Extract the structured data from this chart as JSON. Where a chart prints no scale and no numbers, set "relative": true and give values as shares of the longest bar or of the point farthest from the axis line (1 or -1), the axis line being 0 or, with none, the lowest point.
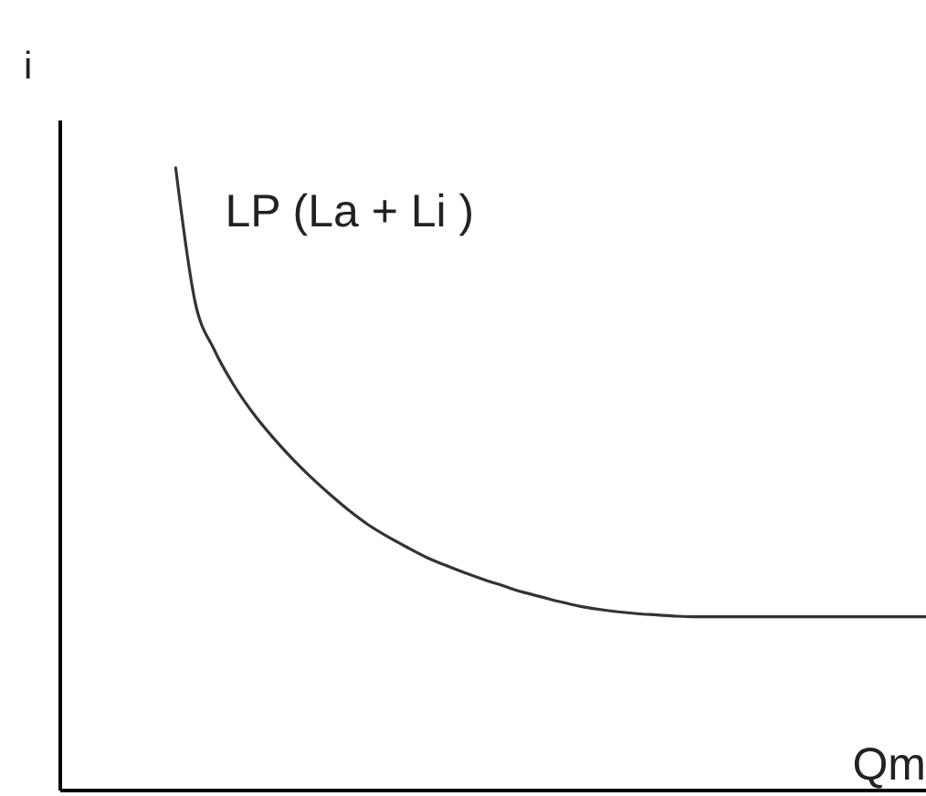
{
  "chart_data": {
    "type": "line",
    "relative": true,
    "ylabel": "i",
    "xlabel": "Qm",
    "line_style": "solid",
    "categories": [
      null,
      null,
      null,
      null,
      null,
      null,
      null,
      null,
      null,
      null,
      null,
      null,
      null,
      null,
      null,
      null,
      null,
      null,
      null,
      null,
      null,
      null,
      null,
      null,
      null,
      null,
      null,
      null,
      null,
      null,
      null,
      null,
      null,
      null,
      null,
      null,
      null,
      null,
      null,
      null,
      null,
      null,
      null,
      null,
      null,
      null
    ],
    "series": [
      {
        "name": "LP (La + Li )",
        "color": "#333333",
        "values": [
          null,
          null,
          null,
          null,
          null,
          null,
          1,
          0.786,
          0.708,
          0.652,
          0.607,
          0.569,
          0.535,
          0.504,
          0.476,
          0.45,
          0.427,
          0.408,
          0.391,
          0.375,
          0.362,
          0.35,
          0.339,
          0.329,
          0.319,
          0.311,
          0.303,
          0.296,
          0.291,
          0.287,
          0.284,
          0.282,
          0.28,
          0.279,
          0.279,
          0.279,
          0.279,
          0.279,
          0.279,
          0.279,
          0.279,
          0.279,
          0.279,
          0.279,
          0.279,
          0.279
        ]
      }
    ]
  }
}
